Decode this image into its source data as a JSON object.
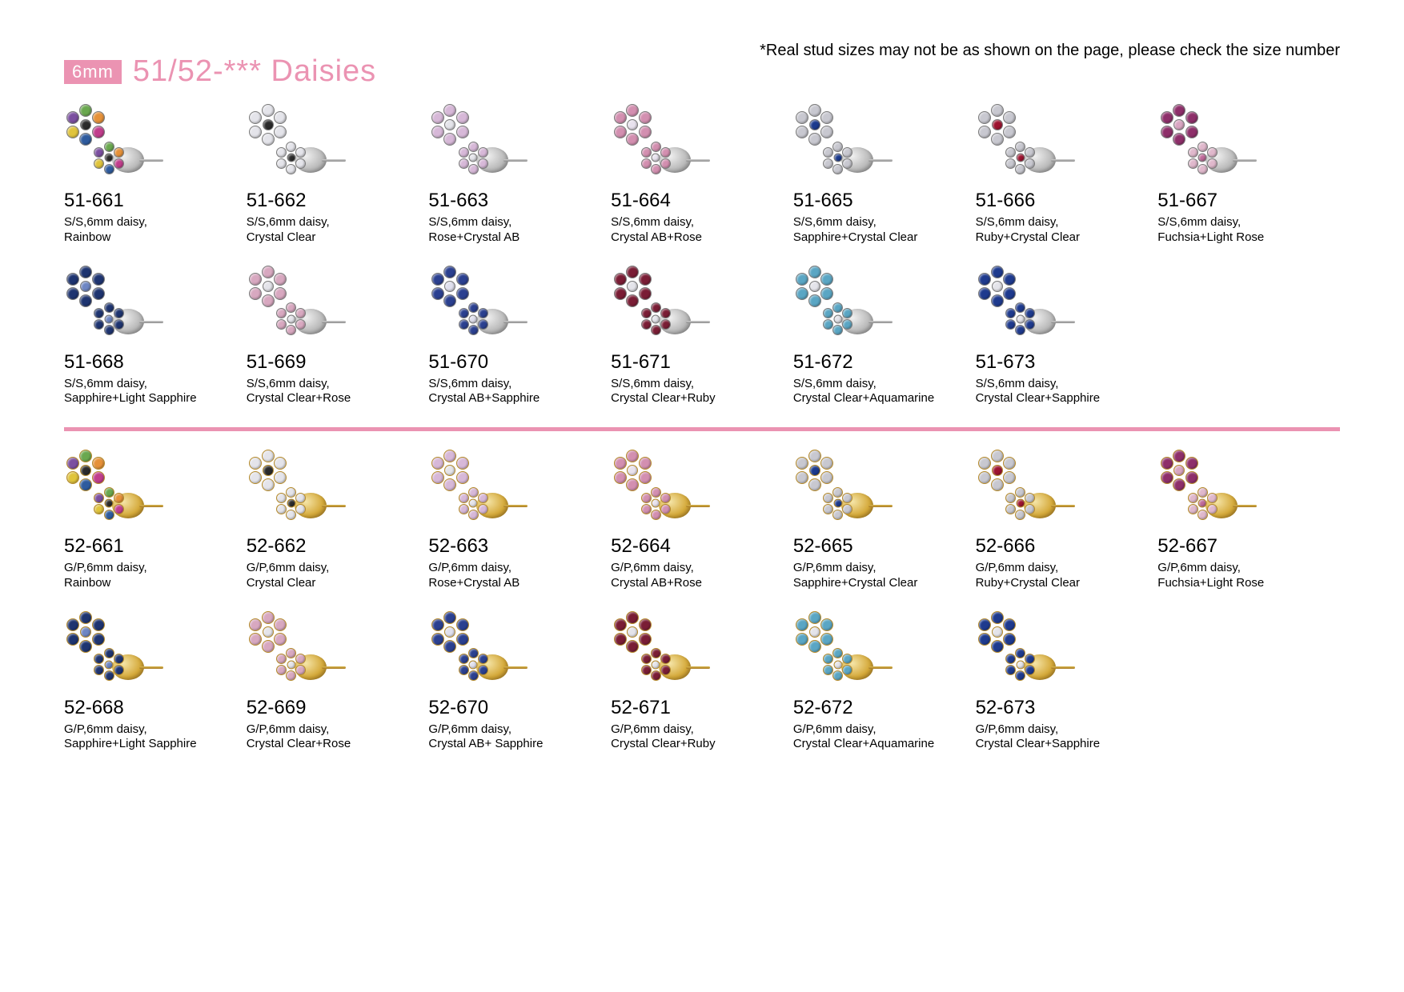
{
  "note": "*Real stud sizes may not be as shown on the page, please check the size number",
  "header": {
    "size_tag": "6mm",
    "title": "51/52-***   Daisies"
  },
  "colors": {
    "pink_accent": "#eb93b2",
    "silver": "#b8b8b8",
    "gold": "#d4a838",
    "bg": "#ffffff"
  },
  "petal_palettes": {
    "rainbow": {
      "petals": [
        "#6aa84f",
        "#e69138",
        "#c13d8c",
        "#2e5b9e",
        "#e0c43b",
        "#7b4fa0"
      ],
      "center": "#2b2b2b"
    },
    "crystal_clear": {
      "petals": [
        "#e4e4ea",
        "#e4e4ea",
        "#e4e4ea",
        "#e4e4ea",
        "#e4e4ea",
        "#e4e4ea"
      ],
      "center": "#2b2b2b"
    },
    "rose_crystal_ab": {
      "petals": [
        "#d7b8d8",
        "#d7b8d8",
        "#d7b8d8",
        "#d7b8d8",
        "#d7b8d8",
        "#d7b8d8"
      ],
      "center": "#e4e4ea"
    },
    "crystal_ab_rose": {
      "petals": [
        "#d38fb0",
        "#d38fb0",
        "#d38fb0",
        "#d38fb0",
        "#d38fb0",
        "#d38fb0"
      ],
      "center": "#e8e2ee"
    },
    "sapphire_crystal": {
      "petals": [
        "#c8c8d0",
        "#c8c8d0",
        "#c8c8d0",
        "#c8c8d0",
        "#c8c8d0",
        "#c8c8d0"
      ],
      "center": "#1b3a8e"
    },
    "ruby_crystal": {
      "petals": [
        "#c8c8d0",
        "#c8c8d0",
        "#c8c8d0",
        "#c8c8d0",
        "#c8c8d0",
        "#c8c8d0"
      ],
      "center": "#9e1330"
    },
    "fuchsia_lightrose": {
      "petals": [
        "#8e2f6a",
        "#8e2f6a",
        "#8e2f6a",
        "#8e2f6a",
        "#8e2f6a",
        "#8e2f6a"
      ],
      "center": "#d9a5c2"
    },
    "sapphire_lightsapphire": {
      "petals": [
        "#1e3470",
        "#1e3470",
        "#1e3470",
        "#1e3470",
        "#1e3470",
        "#1e3470"
      ],
      "center": "#6d86c4"
    },
    "crystal_clear_rose": {
      "petals": [
        "#d8a8c0",
        "#d8a8c0",
        "#d8a8c0",
        "#d8a8c0",
        "#d8a8c0",
        "#d8a8c0"
      ],
      "center": "#e4e4ea"
    },
    "crystal_ab_sapphire": {
      "petals": [
        "#2b4090",
        "#2b4090",
        "#2b4090",
        "#2b4090",
        "#2b4090",
        "#2b4090"
      ],
      "center": "#e0e0ee"
    },
    "crystal_clear_ruby": {
      "petals": [
        "#7a1d35",
        "#7a1d35",
        "#7a1d35",
        "#7a1d35",
        "#7a1d35",
        "#7a1d35"
      ],
      "center": "#e4e4ea"
    },
    "crystal_clear_aquamarine": {
      "petals": [
        "#5aa6c4",
        "#5aa6c4",
        "#5aa6c4",
        "#5aa6c4",
        "#5aa6c4",
        "#5aa6c4"
      ],
      "center": "#e4e4ea"
    },
    "crystal_clear_sapphire": {
      "petals": [
        "#1e3a8e",
        "#1e3a8e",
        "#1e3a8e",
        "#1e3a8e",
        "#1e3a8e",
        "#1e3a8e"
      ],
      "center": "#e4e4ea"
    },
    "lightrose": {
      "petals": [
        "#e0b8cc",
        "#e0b8cc",
        "#e0b8cc",
        "#e0b8cc",
        "#e0b8cc",
        "#e0b8cc"
      ],
      "center": "#c06a9a"
    }
  },
  "sections": [
    {
      "finish": "silver",
      "rows": [
        [
          {
            "sku": "51-661",
            "desc": "S/S,6mm daisy,\nRainbow",
            "p1": "rainbow",
            "p2": "rainbow"
          },
          {
            "sku": "51-662",
            "desc": "S/S,6mm daisy,\nCrystal Clear",
            "p1": "crystal_clear",
            "p2": "crystal_clear"
          },
          {
            "sku": "51-663",
            "desc": "S/S,6mm daisy,\nRose+Crystal AB",
            "p1": "rose_crystal_ab",
            "p2": "rose_crystal_ab"
          },
          {
            "sku": "51-664",
            "desc": "S/S,6mm daisy,\nCrystal AB+Rose",
            "p1": "crystal_ab_rose",
            "p2": "crystal_ab_rose"
          },
          {
            "sku": "51-665",
            "desc": "S/S,6mm daisy,\nSapphire+Crystal  Clear",
            "p1": "sapphire_crystal",
            "p2": "sapphire_crystal"
          },
          {
            "sku": "51-666",
            "desc": "S/S,6mm daisy,\nRuby+Crystal  Clear",
            "p1": "ruby_crystal",
            "p2": "ruby_crystal"
          },
          {
            "sku": "51-667",
            "desc": "S/S,6mm daisy,\nFuchsia+Light Rose",
            "p1": "fuchsia_lightrose",
            "p2": "lightrose"
          }
        ],
        [
          {
            "sku": "51-668",
            "desc": "S/S,6mm daisy,\nSapphire+Light Sapphire",
            "p1": "sapphire_lightsapphire",
            "p2": "sapphire_lightsapphire"
          },
          {
            "sku": "51-669",
            "desc": "S/S,6mm daisy,\nCrystal Clear+Rose",
            "p1": "crystal_clear_rose",
            "p2": "crystal_clear_rose"
          },
          {
            "sku": "51-670",
            "desc": "S/S,6mm daisy,\nCrystal AB+Sapphire",
            "p1": "crystal_ab_sapphire",
            "p2": "crystal_ab_sapphire"
          },
          {
            "sku": "51-671",
            "desc": "S/S,6mm daisy,\nCrystal Clear+Ruby",
            "p1": "crystal_clear_ruby",
            "p2": "crystal_clear_ruby"
          },
          {
            "sku": "51-672",
            "desc": "S/S,6mm daisy,\nCrystal Clear+Aquamarine",
            "p1": "crystal_clear_aquamarine",
            "p2": "crystal_clear_aquamarine"
          },
          {
            "sku": "51-673",
            "desc": "S/S,6mm daisy,\nCrystal Clear+Sapphire",
            "p1": "crystal_clear_sapphire",
            "p2": "crystal_clear_sapphire"
          }
        ]
      ]
    },
    {
      "finish": "gold",
      "rows": [
        [
          {
            "sku": "52-661",
            "desc": "G/P,6mm daisy,\nRainbow",
            "p1": "rainbow",
            "p2": "rainbow"
          },
          {
            "sku": "52-662",
            "desc": "G/P,6mm daisy,\nCrystal Clear",
            "p1": "crystal_clear",
            "p2": "crystal_clear"
          },
          {
            "sku": "52-663",
            "desc": "G/P,6mm daisy,\nRose+Crystal AB",
            "p1": "rose_crystal_ab",
            "p2": "rose_crystal_ab"
          },
          {
            "sku": "52-664",
            "desc": "G/P,6mm daisy,\nCrystal AB+Rose",
            "p1": "crystal_ab_rose",
            "p2": "crystal_ab_rose"
          },
          {
            "sku": "52-665",
            "desc": "G/P,6mm daisy,\nSapphire+Crystal Clear",
            "p1": "sapphire_crystal",
            "p2": "sapphire_crystal"
          },
          {
            "sku": "52-666",
            "desc": "G/P,6mm daisy,\nRuby+Crystal  Clear",
            "p1": "ruby_crystal",
            "p2": "ruby_crystal"
          },
          {
            "sku": "52-667",
            "desc": "G/P,6mm daisy,\nFuchsia+Light  Rose",
            "p1": "fuchsia_lightrose",
            "p2": "lightrose"
          }
        ],
        [
          {
            "sku": "52-668",
            "desc": "G/P,6mm daisy,\nSapphire+Light  Sapphire",
            "p1": "sapphire_lightsapphire",
            "p2": "sapphire_lightsapphire"
          },
          {
            "sku": "52-669",
            "desc": "G/P,6mm daisy,\nCrystal Clear+Rose",
            "p1": "crystal_clear_rose",
            "p2": "crystal_clear_rose"
          },
          {
            "sku": "52-670",
            "desc": "G/P,6mm daisy,\nCrystal AB+ Sapphire",
            "p1": "crystal_ab_sapphire",
            "p2": "crystal_ab_sapphire"
          },
          {
            "sku": "52-671",
            "desc": "G/P,6mm daisy,\nCrystal Clear+Ruby",
            "p1": "crystal_clear_ruby",
            "p2": "crystal_clear_ruby"
          },
          {
            "sku": "52-672",
            "desc": "G/P,6mm daisy,\nCrystal Clear+Aquamarine",
            "p1": "crystal_clear_aquamarine",
            "p2": "crystal_clear_aquamarine"
          },
          {
            "sku": "52-673",
            "desc": "G/P,6mm daisy,\nCrystal Clear+Sapphire",
            "p1": "crystal_clear_sapphire",
            "p2": "crystal_clear_sapphire"
          }
        ]
      ]
    }
  ]
}
